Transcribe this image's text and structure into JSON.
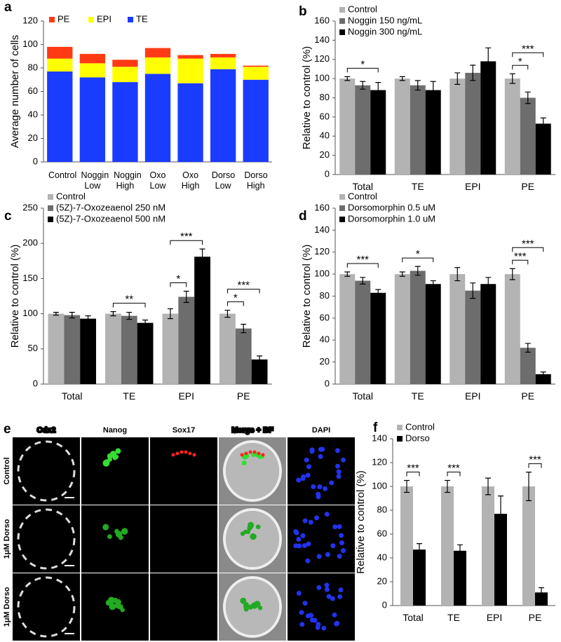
{
  "chart_data": [
    {
      "type": "bar",
      "stacked": true,
      "label": "a",
      "ylabel": "Average number of cells",
      "legend": "top",
      "categories": [
        "Control",
        "Noggin Low",
        "Noggin High",
        "Oxo Low",
        "Oxo High",
        "Dorso Low",
        "Dorso High"
      ],
      "series": [
        {
          "name": "PE",
          "color": "#ff3a14",
          "values": [
            10,
            8,
            6,
            8,
            3,
            3,
            1
          ]
        },
        {
          "name": "EPI",
          "color": "#ffff00",
          "values": [
            11,
            12,
            13,
            14,
            21,
            10,
            11
          ]
        },
        {
          "name": "TE",
          "color": "#1a3cff",
          "values": [
            77,
            72,
            68,
            75,
            67,
            79,
            70
          ]
        }
      ],
      "ylim": [
        0,
        120
      ],
      "yticks": [
        0,
        20,
        40,
        60,
        80,
        100,
        120
      ]
    },
    {
      "type": "bar",
      "label": "b",
      "ylabel": "Relative to control (%)",
      "legend": "upper left",
      "categories": [
        "Total",
        "TE",
        "EPI",
        "PE"
      ],
      "series": [
        {
          "name": "Control",
          "color": "#b3b3b3",
          "values": [
            100,
            100,
            100,
            100
          ],
          "errors": [
            2,
            2,
            6,
            5
          ]
        },
        {
          "name": "Noggin 150 ng/mL",
          "color": "#6d6d6d",
          "values": [
            93,
            93,
            106,
            80
          ],
          "errors": [
            4,
            5,
            8,
            6
          ]
        },
        {
          "name": "Noggin 300 ng/mL",
          "color": "#000000",
          "values": [
            88,
            88,
            118,
            53
          ],
          "errors": [
            8,
            9,
            14,
            6
          ]
        }
      ],
      "annotations": [
        {
          "category": 0,
          "from": 0,
          "to": 2,
          "text": "*"
        },
        {
          "category": 3,
          "from": 0,
          "to": 1,
          "text": "*"
        },
        {
          "category": 3,
          "from": 0,
          "to": 2,
          "text": "***"
        }
      ],
      "ylim": [
        0,
        160
      ],
      "yticks": [
        0,
        20,
        40,
        60,
        80,
        100,
        120,
        140,
        160
      ]
    },
    {
      "type": "bar",
      "label": "c",
      "ylabel": "Relative to control (%)",
      "legend": "upper left",
      "categories": [
        "Total",
        "TE",
        "EPI",
        "PE"
      ],
      "series": [
        {
          "name": "Control",
          "color": "#b3b3b3",
          "values": [
            100,
            100,
            100,
            100
          ],
          "errors": [
            2,
            3,
            7,
            5
          ]
        },
        {
          "name": "(5Z)-7-Oxozeaenol 250 nM",
          "color": "#6d6d6d",
          "values": [
            98,
            97,
            124,
            79
          ],
          "errors": [
            4,
            5,
            8,
            6
          ]
        },
        {
          "name": "(5Z)-7-Oxozeaenol 500 nM",
          "color": "#000000",
          "values": [
            93,
            87,
            181,
            35
          ],
          "errors": [
            4,
            4,
            11,
            5
          ]
        }
      ],
      "annotations": [
        {
          "category": 1,
          "from": 0,
          "to": 2,
          "text": "**"
        },
        {
          "category": 2,
          "from": 0,
          "to": 1,
          "text": "*"
        },
        {
          "category": 2,
          "from": 0,
          "to": 2,
          "text": "***"
        },
        {
          "category": 3,
          "from": 0,
          "to": 1,
          "text": "*"
        },
        {
          "category": 3,
          "from": 0,
          "to": 2,
          "text": "***"
        }
      ],
      "ylim": [
        0,
        250
      ],
      "yticks": [
        0,
        50,
        100,
        150,
        200,
        250
      ]
    },
    {
      "type": "bar",
      "label": "d",
      "ylabel": "Relative to control (%)",
      "legend": "upper left",
      "categories": [
        "Total",
        "TE",
        "EPI",
        "PE"
      ],
      "series": [
        {
          "name": "Control",
          "color": "#b3b3b3",
          "values": [
            100,
            100,
            100,
            100
          ],
          "errors": [
            2,
            2,
            6,
            5
          ]
        },
        {
          "name": "Dorsomorphin 0.5 uM",
          "color": "#6d6d6d",
          "values": [
            94,
            103,
            85,
            33
          ],
          "errors": [
            3,
            4,
            7,
            4
          ]
        },
        {
          "name": "Dorsomorphin 1.0 uM",
          "color": "#000000",
          "values": [
            83,
            91,
            91,
            9
          ],
          "errors": [
            3,
            3,
            6,
            2
          ]
        }
      ],
      "annotations": [
        {
          "category": 0,
          "from": 0,
          "to": 2,
          "text": "***"
        },
        {
          "category": 1,
          "from": 0,
          "to": 2,
          "text": "*"
        },
        {
          "category": 3,
          "from": 0,
          "to": 1,
          "text": "***"
        },
        {
          "category": 3,
          "from": 0,
          "to": 2,
          "text": "***"
        }
      ],
      "ylim": [
        0,
        160
      ],
      "yticks": [
        0,
        20,
        40,
        60,
        80,
        100,
        120,
        140,
        160
      ]
    },
    {
      "type": "bar",
      "label": "f",
      "ylabel": "Relative to control (%)",
      "legend": "upper left",
      "categories": [
        "Total",
        "TE",
        "EPI",
        "PE"
      ],
      "series": [
        {
          "name": "Control",
          "color": "#b3b3b3",
          "values": [
            100,
            100,
            100,
            100
          ],
          "errors": [
            5,
            5,
            7,
            12
          ]
        },
        {
          "name": "Dorso",
          "color": "#000000",
          "values": [
            47,
            46,
            77,
            11
          ],
          "errors": [
            5,
            5,
            15,
            4
          ]
        }
      ],
      "annotations": [
        {
          "category": 0,
          "from": 0,
          "to": 1,
          "text": "***"
        },
        {
          "category": 1,
          "from": 0,
          "to": 1,
          "text": "***"
        },
        {
          "category": 3,
          "from": 0,
          "to": 1,
          "text": "***"
        }
      ],
      "ylim": [
        0,
        140
      ],
      "yticks": [
        0,
        20,
        40,
        60,
        80,
        100,
        120,
        140
      ]
    }
  ],
  "panel_e": {
    "label": "e",
    "columns": [
      "Cdx2",
      "Nanog",
      "Sox17",
      "Merge + BF",
      "DAPI"
    ],
    "rows": [
      "Control",
      "1μM Dorso",
      "1μM Dorso"
    ]
  }
}
